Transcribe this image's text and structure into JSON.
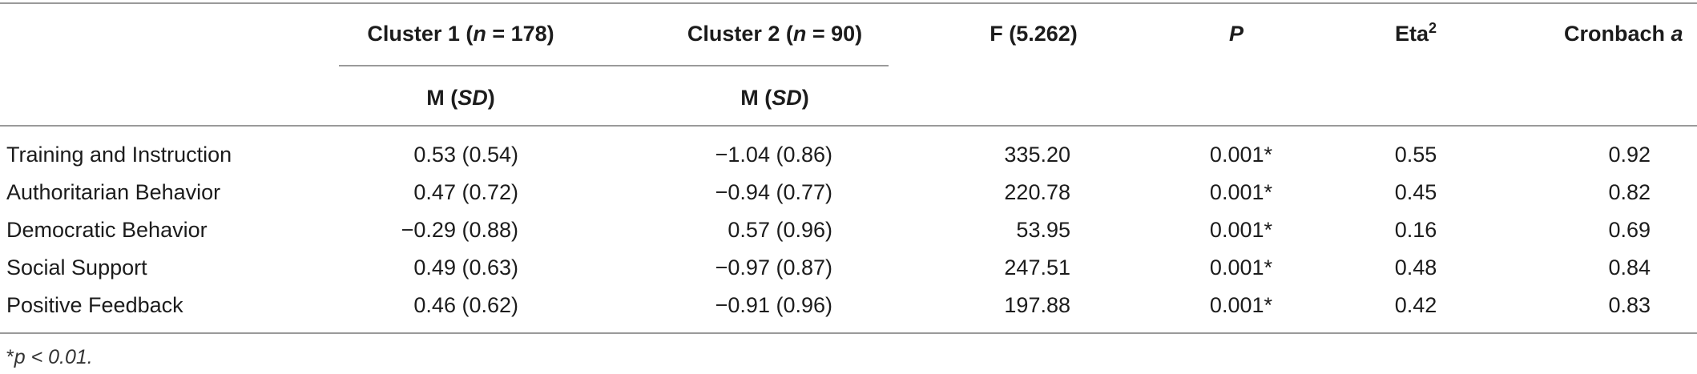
{
  "header": {
    "cluster1": {
      "pre": "Cluster 1 (",
      "n_italic": "n",
      "post": " = 178)"
    },
    "cluster2": {
      "pre": "Cluster 2 (",
      "n_italic": "n",
      "post": " = 90)"
    },
    "f": "F (5.262)",
    "p": "P",
    "eta": {
      "base": "Eta",
      "sup": "2"
    },
    "cronbach": {
      "base": "Cronbach ",
      "italic": "a"
    },
    "msd1": {
      "pre": "M (",
      "italic": "SD",
      "post": ")"
    },
    "msd2": {
      "pre": "M (",
      "italic": "SD",
      "post": ")"
    }
  },
  "rows": [
    {
      "label": "Training and Instruction",
      "c1": "0.53 (0.54)",
      "c2": "−1.04 (0.86)",
      "f": "335.20",
      "p": "0.001*",
      "eta": "0.55",
      "alpha": "0.92"
    },
    {
      "label": "Authoritarian Behavior",
      "c1": "0.47 (0.72)",
      "c2": "−0.94 (0.77)",
      "f": "220.78",
      "p": "0.001*",
      "eta": "0.45",
      "alpha": "0.82"
    },
    {
      "label": "Democratic Behavior",
      "c1": "−0.29 (0.88)",
      "c2": "0.57 (0.96)",
      "f": "53.95",
      "p": "0.001*",
      "eta": "0.16",
      "alpha": "0.69"
    },
    {
      "label": "Social Support",
      "c1": "0.49 (0.63)",
      "c2": "−0.97 (0.87)",
      "f": "247.51",
      "p": "0.001*",
      "eta": "0.48",
      "alpha": "0.84"
    },
    {
      "label": "Positive Feedback",
      "c1": "0.46 (0.62)",
      "c2": "−0.91 (0.96)",
      "f": "197.88",
      "p": "0.001*",
      "eta": "0.42",
      "alpha": "0.83"
    }
  ],
  "footnote": {
    "star": "*",
    "p_italic": "p",
    "rest": " < 0.01."
  }
}
